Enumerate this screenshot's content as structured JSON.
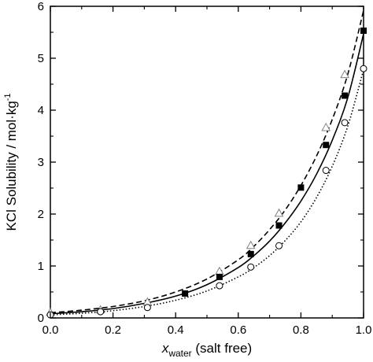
{
  "chart_data": {
    "type": "scatter",
    "xlabel": {
      "var": "x",
      "sub": "water",
      "suffix": " (salt free)"
    },
    "ylabel": {
      "main": "KCl Solubility / mol·kg",
      "sup": "-1"
    },
    "xlim": [
      0,
      1
    ],
    "ylim": [
      0,
      6
    ],
    "x_ticks": [
      0.0,
      0.2,
      0.4,
      0.6,
      0.8,
      1.0
    ],
    "x_tick_labels": [
      "0.0",
      "0.2",
      "0.4",
      "0.6",
      "0.8",
      "1.0"
    ],
    "y_ticks": [
      0,
      1,
      2,
      3,
      4,
      5,
      6
    ],
    "y_tick_labels": [
      "0",
      "1",
      "2",
      "3",
      "4",
      "5",
      "6"
    ],
    "grid": false,
    "legend": "none",
    "series": [
      {
        "marker": "triangle-open",
        "color": "#808080",
        "x": [
          0.0,
          0.16,
          0.31,
          0.54,
          0.64,
          0.73,
          0.88,
          0.94
        ],
        "y": [
          0.1,
          0.15,
          0.3,
          0.89,
          1.39,
          2.01,
          3.66,
          4.68
        ]
      },
      {
        "marker": "square-filled",
        "color": "#000000",
        "x": [
          0.43,
          0.54,
          0.64,
          0.73,
          0.8,
          0.88,
          0.94,
          1.0
        ],
        "y": [
          0.47,
          0.79,
          1.23,
          1.78,
          2.51,
          3.33,
          4.28,
          5.53
        ]
      },
      {
        "marker": "circle-open",
        "color": "#000000",
        "x": [
          0.0,
          0.16,
          0.31,
          0.54,
          0.64,
          0.73,
          0.88,
          0.94,
          1.0
        ],
        "y": [
          0.06,
          0.12,
          0.2,
          0.62,
          0.98,
          1.39,
          2.84,
          3.76,
          4.8
        ]
      }
    ],
    "curves": [
      {
        "style": "dashed",
        "color": "#000000",
        "x": [
          0,
          0.1,
          0.2,
          0.3,
          0.4,
          0.5,
          0.6,
          0.65,
          0.7,
          0.75,
          0.8,
          0.85,
          0.9,
          0.95,
          1.0
        ],
        "y": [
          0.1,
          0.15,
          0.22,
          0.33,
          0.5,
          0.75,
          1.12,
          1.38,
          1.7,
          2.08,
          2.55,
          3.12,
          3.82,
          4.7,
          5.92
        ]
      },
      {
        "style": "solid",
        "color": "#000000",
        "x": [
          0,
          0.1,
          0.2,
          0.3,
          0.4,
          0.5,
          0.6,
          0.65,
          0.7,
          0.75,
          0.8,
          0.85,
          0.9,
          0.95,
          1.0
        ],
        "y": [
          0.08,
          0.12,
          0.18,
          0.28,
          0.42,
          0.64,
          0.97,
          1.2,
          1.48,
          1.83,
          2.25,
          2.77,
          3.42,
          4.25,
          5.47
        ]
      },
      {
        "style": "dotted",
        "color": "#000000",
        "x": [
          0,
          0.1,
          0.2,
          0.3,
          0.4,
          0.5,
          0.6,
          0.65,
          0.7,
          0.75,
          0.8,
          0.85,
          0.9,
          0.95,
          1.0
        ],
        "y": [
          0.06,
          0.09,
          0.14,
          0.22,
          0.34,
          0.52,
          0.79,
          0.97,
          1.2,
          1.49,
          1.85,
          2.32,
          2.92,
          3.7,
          4.78
        ]
      }
    ]
  }
}
